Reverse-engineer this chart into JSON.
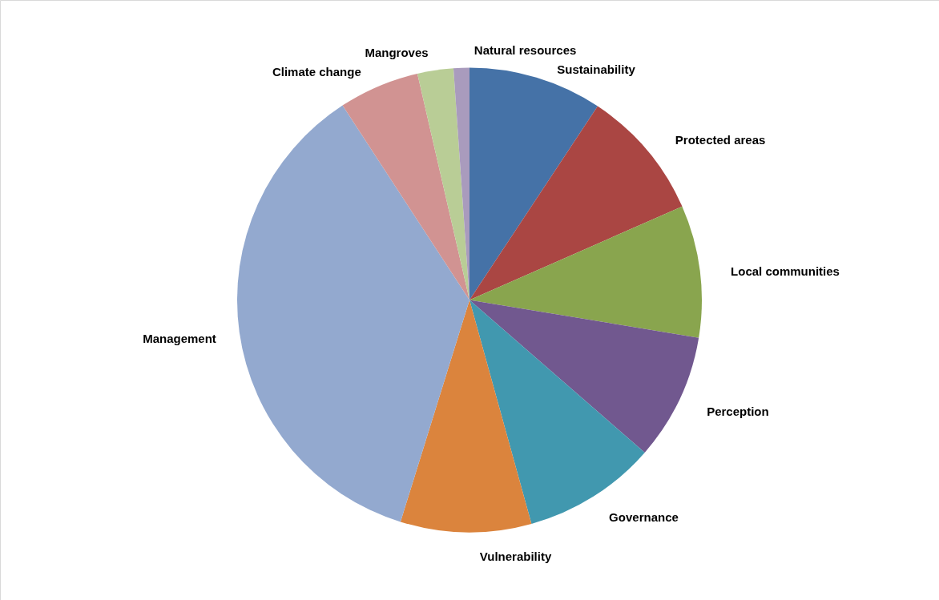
{
  "chart_data": {
    "type": "pie",
    "categories": [
      "Sustainability",
      "Protected areas",
      "Local communities",
      "Perception",
      "Governance",
      "Vulnerability",
      "Management",
      "Climate change",
      "Mangroves",
      "Natural resources"
    ],
    "values": [
      9.3,
      9.1,
      9.2,
      8.8,
      9.3,
      9.1,
      36.0,
      5.6,
      2.5,
      1.1
    ],
    "colors": [
      "#4572a7",
      "#aa4643",
      "#89a54e",
      "#71588f",
      "#4198af",
      "#db843d",
      "#93a9cf",
      "#d19392",
      "#b9cd96",
      "#a99bbd"
    ]
  }
}
